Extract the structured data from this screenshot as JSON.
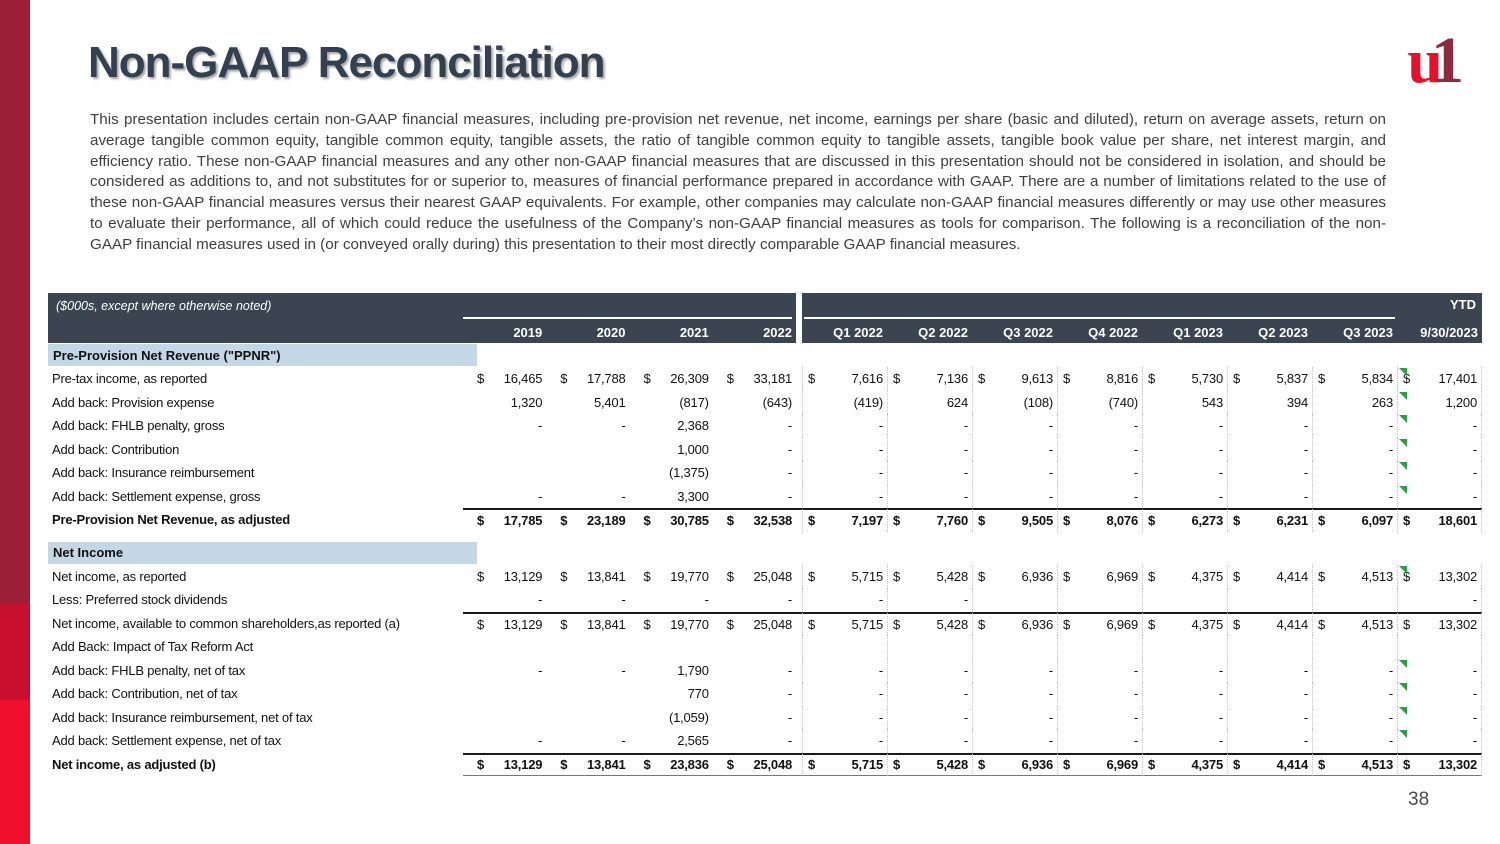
{
  "page": {
    "title": "Non-GAAP Reconciliation",
    "page_number": "38",
    "logo": {
      "u": "u",
      "one": "1"
    }
  },
  "disclaimer": "This presentation includes certain non-GAAP financial measures, including pre-provision net revenue, net income, earnings per share (basic and diluted), return on average assets, return on average tangible common equity, tangible common equity, tangible assets, the ratio of tangible common equity to tangible assets, tangible book value per share, net interest margin, and efficiency ratio. These non-GAAP financial measures and any other non-GAAP financial measures that are discussed in this presentation should not be considered in isolation, and should be considered as additions to, and not substitutes for or superior to, measures of financial performance prepared in accordance with GAAP. There are a number of limitations related to the use of these non-GAAP financial measures versus their nearest GAAP equivalents. For example, other companies may calculate non-GAAP financial measures differently or may use other measures to evaluate their performance, all of which could reduce the usefulness of the Company’s non-GAAP financial measures as tools for comparison. The following is a reconciliation of the non-GAAP financial measures used in (or conveyed orally during) this presentation to their most directly comparable GAAP financial measures.",
  "table": {
    "units_note": "($000s, except where otherwise noted)",
    "annual_columns": [
      "2019",
      "2020",
      "2021",
      "2022"
    ],
    "quarter_columns": [
      "Q1 2022",
      "Q2 2022",
      "Q3 2022",
      "Q4 2022",
      "Q1 2023",
      "Q2 2023",
      "Q3 2023"
    ],
    "ytd_label": "YTD",
    "ytd_date": "9/30/2023",
    "sections": [
      {
        "title": "Pre-Provision Net Revenue (\"PPNR\")",
        "rows": [
          {
            "label": "Pre-tax income, as reported",
            "dollar": true,
            "flag": true,
            "annual": [
              "16,465",
              "17,788",
              "26,309",
              "33,181"
            ],
            "quarters": [
              "7,616",
              "7,136",
              "9,613",
              "8,816",
              "5,730",
              "5,837",
              "5,834"
            ],
            "ytd": "17,401"
          },
          {
            "label": "Add back: Provision expense",
            "flag": true,
            "annual": [
              "1,320",
              "5,401",
              "(817)",
              "(643)"
            ],
            "quarters": [
              "(419)",
              "624",
              "(108)",
              "(740)",
              "543",
              "394",
              "263"
            ],
            "ytd": "1,200"
          },
          {
            "label": "Add back: FHLB penalty, gross",
            "flag": true,
            "annual": [
              "-",
              "-",
              "2,368",
              "-"
            ],
            "quarters": [
              "-",
              "-",
              "-",
              "-",
              "-",
              "-",
              "-"
            ],
            "ytd": "-"
          },
          {
            "label": "Add back: Contribution",
            "flag": true,
            "annual": [
              "",
              "",
              "1,000",
              "-"
            ],
            "quarters": [
              "-",
              "-",
              "-",
              "-",
              "-",
              "-",
              "-"
            ],
            "ytd": "-"
          },
          {
            "label": "Add back: Insurance reimbursement",
            "flag": true,
            "annual": [
              "",
              "",
              "(1,375)",
              "-"
            ],
            "quarters": [
              "-",
              "-",
              "-",
              "-",
              "-",
              "-",
              "-"
            ],
            "ytd": "-"
          },
          {
            "label": "Add back: Settlement expense, gross",
            "flag": true,
            "annual": [
              "-",
              "-",
              "3,300",
              "-"
            ],
            "quarters": [
              "-",
              "-",
              "-",
              "-",
              "-",
              "-",
              "-"
            ],
            "ytd": "-"
          },
          {
            "label": "Pre-Provision Net Revenue, as adjusted",
            "dollar": true,
            "bold": true,
            "top_border": true,
            "annual": [
              "17,785",
              "23,189",
              "30,785",
              "32,538"
            ],
            "quarters": [
              "7,197",
              "7,760",
              "9,505",
              "8,076",
              "6,273",
              "6,231",
              "6,097"
            ],
            "ytd": "18,601"
          }
        ]
      },
      {
        "title": "Net Income",
        "rows": [
          {
            "label": "Net income, as reported",
            "dollar": true,
            "flag": true,
            "annual": [
              "13,129",
              "13,841",
              "19,770",
              "25,048"
            ],
            "quarters": [
              "5,715",
              "5,428",
              "6,936",
              "6,969",
              "4,375",
              "4,414",
              "4,513"
            ],
            "ytd": "13,302"
          },
          {
            "label": "Less: Preferred stock dividends",
            "annual": [
              "-",
              "-",
              "-",
              "-"
            ],
            "quarters": [
              "-",
              "-",
              "",
              "",
              "",
              "",
              ""
            ],
            "ytd": "-"
          },
          {
            "label": "Net income, available to common shareholders,as reported (a)",
            "dollar": true,
            "top_border": true,
            "annual": [
              "13,129",
              "13,841",
              "19,770",
              "25,048"
            ],
            "quarters": [
              "5,715",
              "5,428",
              "6,936",
              "6,969",
              "4,375",
              "4,414",
              "4,513"
            ],
            "ytd": "13,302"
          },
          {
            "label": "Add Back: Impact of Tax Reform Act",
            "annual": [
              "",
              "",
              "",
              ""
            ],
            "quarters": [
              "",
              "",
              "",
              "",
              "",
              "",
              ""
            ],
            "ytd": ""
          },
          {
            "label": "Add back: FHLB penalty, net of tax",
            "flag": true,
            "annual": [
              "-",
              "-",
              "1,790",
              "-"
            ],
            "quarters": [
              "-",
              "-",
              "-",
              "-",
              "-",
              "-",
              "-"
            ],
            "ytd": "-"
          },
          {
            "label": "Add back: Contribution, net of tax",
            "flag": true,
            "annual": [
              "",
              "",
              "770",
              "-"
            ],
            "quarters": [
              "-",
              "-",
              "-",
              "-",
              "-",
              "-",
              "-"
            ],
            "ytd": "-"
          },
          {
            "label": "Add back: Insurance reimbursement, net of tax",
            "flag": true,
            "annual": [
              "",
              "",
              "(1,059)",
              "-"
            ],
            "quarters": [
              "-",
              "-",
              "-",
              "-",
              "-",
              "-",
              "-"
            ],
            "ytd": "-"
          },
          {
            "label": "Add back: Settlement expense, net of tax",
            "flag": true,
            "annual": [
              "-",
              "-",
              "2,565",
              "-"
            ],
            "quarters": [
              "-",
              "-",
              "-",
              "-",
              "-",
              "-",
              "-"
            ],
            "ytd": "-"
          },
          {
            "label": "Net income, as adjusted (b)",
            "dollar": true,
            "bold": true,
            "top_border": true,
            "bottom_border": true,
            "annual": [
              "13,129",
              "13,841",
              "23,836",
              "25,048"
            ],
            "quarters": [
              "5,715",
              "5,428",
              "6,936",
              "6,969",
              "4,375",
              "4,414",
              "4,513"
            ],
            "ytd": "13,302"
          }
        ]
      }
    ]
  },
  "colors": {
    "header_bg": "#3B4551",
    "section_bg": "#C4D7E5",
    "accent_bar_dark": "#9A1F37",
    "accent_bar_mid": "#C8102E",
    "accent_bar_bright": "#F00F2E",
    "logo_red": "#E8112D",
    "logo_maroon": "#8C2B39",
    "comment_flag_green": "#2f9e41"
  }
}
